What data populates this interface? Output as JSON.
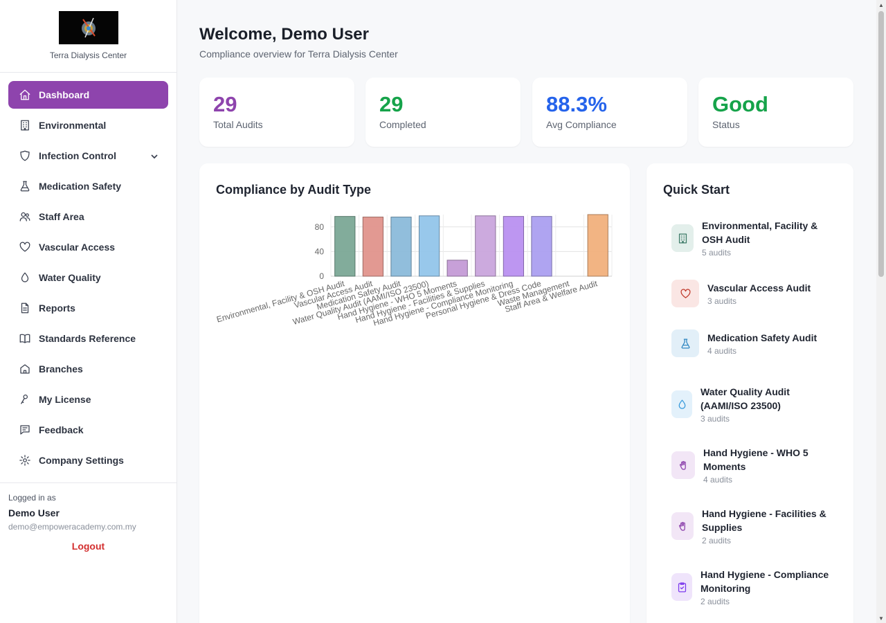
{
  "brand": {
    "name": "Terra Dialysis Center"
  },
  "nav": [
    {
      "label": "Dashboard",
      "icon": "home-icon",
      "active": true
    },
    {
      "label": "Environmental",
      "icon": "building-icon"
    },
    {
      "label": "Infection Control",
      "icon": "shield-icon",
      "expandable": true
    },
    {
      "label": "Medication Safety",
      "icon": "flask-icon"
    },
    {
      "label": "Staff Area",
      "icon": "users-icon"
    },
    {
      "label": "Vascular Access",
      "icon": "heart-icon"
    },
    {
      "label": "Water Quality",
      "icon": "droplet-icon"
    },
    {
      "label": "Reports",
      "icon": "file-icon"
    },
    {
      "label": "Standards Reference",
      "icon": "book-icon"
    },
    {
      "label": "Branches",
      "icon": "house-icon"
    },
    {
      "label": "My License",
      "icon": "key-icon"
    },
    {
      "label": "Feedback",
      "icon": "message-icon"
    },
    {
      "label": "Company Settings",
      "icon": "gear-icon"
    }
  ],
  "user": {
    "caption": "Logged in as",
    "name": "Demo User",
    "email": "demo@empoweracademy.com.my",
    "logout_label": "Logout"
  },
  "header": {
    "welcome": "Welcome, Demo User",
    "subtitle": "Compliance overview for Terra Dialysis Center"
  },
  "stats": [
    {
      "value": "29",
      "label": "Total Audits",
      "color": "#8e44ad"
    },
    {
      "value": "29",
      "label": "Completed",
      "color": "#16a34a"
    },
    {
      "value": "88.3%",
      "label": "Avg Compliance",
      "color": "#2563eb"
    },
    {
      "value": "Good",
      "label": "Status",
      "color": "#16a34a"
    }
  ],
  "chart_card": {
    "title": "Compliance by Audit Type"
  },
  "chart_data": {
    "type": "bar",
    "title": "Compliance by Audit Type",
    "categories": [
      "Environmental, Facility & OSH Audit",
      "Vascular Access Audit",
      "Medication Safety Audit",
      "Water Quality Audit (AAMI/ISO 23500)",
      "Hand Hygiene - WHO 5 Moments",
      "Hand Hygiene - Facilities & Supplies",
      "Hand Hygiene - Compliance Monitoring",
      "Personal Hygiene & Dress Code",
      "Waste Management",
      "Staff Area & Welfare Audit"
    ],
    "values": [
      97,
      96,
      96,
      98,
      26,
      98,
      97,
      97,
      0,
      100
    ],
    "colors": [
      "#7ba896",
      "#e0938c",
      "#8bbada",
      "#92c5ea",
      "#c49bd6",
      "#c9a5dc",
      "#b990f0",
      "#ab9ff0",
      "#d8d8d8",
      "#f1b07c"
    ],
    "yticks": [
      0,
      40,
      80
    ],
    "ylim": [
      0,
      100
    ],
    "grid": true
  },
  "quick_start": {
    "title": "Quick Start",
    "items": [
      {
        "name": "Environmental, Facility & OSH Audit",
        "count": "5 audits",
        "icon": "building-icon",
        "bg": "#e3efeb",
        "stroke": "#3d7a67"
      },
      {
        "name": "Vascular Access Audit",
        "count": "3 audits",
        "icon": "heart-icon",
        "bg": "#fae6e4",
        "stroke": "#c0392b"
      },
      {
        "name": "Medication Safety Audit",
        "count": "4 audits",
        "icon": "flask-icon",
        "bg": "#e2eff8",
        "stroke": "#2e86c1"
      },
      {
        "name": "Water Quality Audit (AAMI/ISO 23500)",
        "count": "3 audits",
        "icon": "droplet-icon",
        "bg": "#e3f1fb",
        "stroke": "#3498db"
      },
      {
        "name": "Hand Hygiene - WHO 5 Moments",
        "count": "4 audits",
        "icon": "hand-icon",
        "bg": "#f2e6f6",
        "stroke": "#8e44ad"
      },
      {
        "name": "Hand Hygiene - Facilities & Supplies",
        "count": "2 audits",
        "icon": "hand-icon",
        "bg": "#f2e6f6",
        "stroke": "#8e44ad"
      },
      {
        "name": "Hand Hygiene - Compliance Monitoring",
        "count": "2 audits",
        "icon": "clipboard-check-icon",
        "bg": "#efe4fb",
        "stroke": "#7c3aed"
      }
    ]
  }
}
